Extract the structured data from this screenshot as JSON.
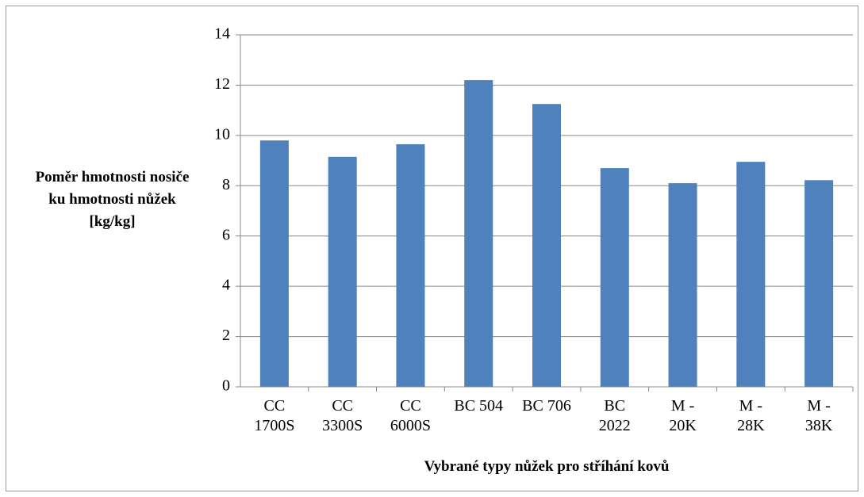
{
  "chart_data": {
    "type": "bar",
    "categories": [
      "CC 1700S",
      "CC 3300S",
      "CC 6000S",
      "BC 504",
      "BC 706",
      "BC 2022",
      "M - 20K",
      "M - 28K",
      "M - 38K"
    ],
    "values": [
      9.8,
      9.15,
      9.65,
      12.2,
      11.25,
      8.7,
      8.1,
      8.95,
      8.22
    ],
    "color": "#4f81bd",
    "ylim": [
      0,
      14
    ],
    "yticks": [
      0,
      2,
      4,
      6,
      8,
      10,
      12,
      14
    ],
    "grid": true,
    "y_label": "Poměr hmotnosti nosiče ku hmotnosti nůžek [kg/kg]",
    "x_label": "Vybrané typy nůžek pro stříhání kovů"
  }
}
